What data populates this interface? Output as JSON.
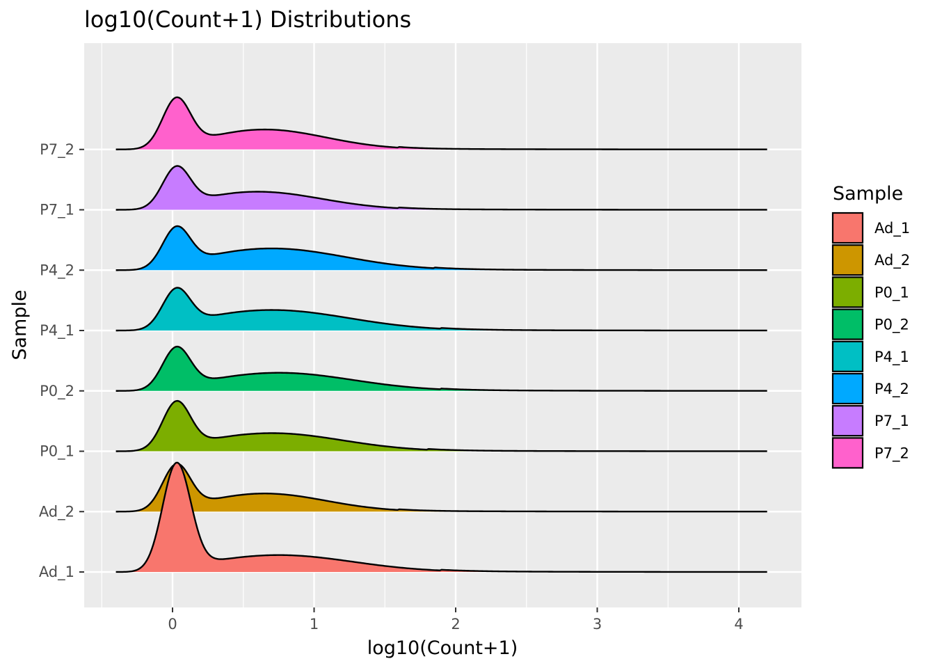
{
  "chart_data": {
    "type": "ridgeline",
    "title": "log10(Count+1) Distributions",
    "xlabel": "log10(Count+1)",
    "ylabel": "Sample",
    "xlim": [
      -0.5,
      4.5
    ],
    "x_ticks": [
      0,
      1,
      2,
      3,
      4
    ],
    "x_tick_labels": [
      "0",
      "1",
      "2",
      "3",
      "4"
    ],
    "density_range": [
      -0.4,
      4.2
    ],
    "grid": true,
    "legend": {
      "title": "Sample",
      "placement": "right"
    },
    "series": [
      {
        "name": "Ad_1",
        "color": "#F8766D",
        "peak_x": 0.03,
        "peak_height": 1.8,
        "shoulder_x": 0.75,
        "shoulder_height": 0.28,
        "tail_end": 1.9
      },
      {
        "name": "Ad_2",
        "color": "#CD9600",
        "peak_x": 0.03,
        "peak_height": 0.78,
        "shoulder_x": 0.65,
        "shoulder_height": 0.3,
        "tail_end": 1.6
      },
      {
        "name": "P0_1",
        "color": "#7CAE00",
        "peak_x": 0.03,
        "peak_height": 0.82,
        "shoulder_x": 0.7,
        "shoulder_height": 0.3,
        "tail_end": 1.8
      },
      {
        "name": "P0_2",
        "color": "#00BE67",
        "peak_x": 0.03,
        "peak_height": 0.72,
        "shoulder_x": 0.75,
        "shoulder_height": 0.3,
        "tail_end": 1.9
      },
      {
        "name": "P4_1",
        "color": "#00BFC4",
        "peak_x": 0.03,
        "peak_height": 0.69,
        "shoulder_x": 0.7,
        "shoulder_height": 0.34,
        "tail_end": 1.9
      },
      {
        "name": "P4_2",
        "color": "#00A9FF",
        "peak_x": 0.03,
        "peak_height": 0.71,
        "shoulder_x": 0.7,
        "shoulder_height": 0.36,
        "tail_end": 1.85
      },
      {
        "name": "P7_1",
        "color": "#C77CFF",
        "peak_x": 0.03,
        "peak_height": 0.71,
        "shoulder_x": 0.6,
        "shoulder_height": 0.3,
        "tail_end": 1.6
      },
      {
        "name": "P7_2",
        "color": "#FF61CC",
        "peak_x": 0.03,
        "peak_height": 0.85,
        "shoulder_x": 0.65,
        "shoulder_height": 0.33,
        "tail_end": 1.6
      }
    ]
  }
}
